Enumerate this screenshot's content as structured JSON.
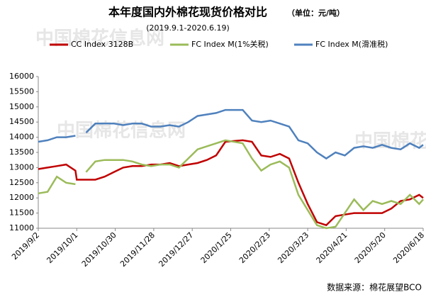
{
  "chart_data": {
    "type": "line",
    "title": "本年度国内外棉花现货价格对比",
    "unit": "（单位：元/吨）",
    "subtitle": "(2019.9.1-2020.6.19)",
    "source": "数据来源：棉花展望BCO",
    "watermark": "中国棉花信息网",
    "x": [
      "2019/9/2",
      "2019/9/9",
      "2019/9/16",
      "2019/9/23",
      "2019/9/30",
      "2019/10/1",
      "2019/10/8",
      "2019/10/15",
      "2019/10/22",
      "2019/10/29",
      "2019/11/5",
      "2019/11/12",
      "2019/11/19",
      "2019/11/26",
      "2019/12/3",
      "2019/12/10",
      "2019/12/17",
      "2019/12/24",
      "2019/12/31",
      "2020/1/7",
      "2020/1/14",
      "2020/1/21",
      "2020/2/3",
      "2020/2/10",
      "2020/2/17",
      "2020/2/24",
      "2020/3/2",
      "2020/3/9",
      "2020/3/16",
      "2020/3/23",
      "2020/3/30",
      "2020/4/6",
      "2020/4/13",
      "2020/4/20",
      "2020/4/27",
      "2020/5/4",
      "2020/5/11",
      "2020/5/18",
      "2020/5/25",
      "2020/6/1",
      "2020/6/8",
      "2020/6/15",
      "2020/6/18"
    ],
    "series": [
      {
        "name": "CC Index 3128B",
        "color": "#c00000",
        "values": [
          12950,
          13000,
          13050,
          13100,
          12900,
          12600,
          12600,
          12600,
          12700,
          12850,
          13000,
          13050,
          13050,
          13100,
          13100,
          13150,
          13050,
          13100,
          13150,
          13250,
          13400,
          13850,
          13900,
          13850,
          13400,
          13350,
          13450,
          13300,
          12500,
          11800,
          11200,
          11100,
          11400,
          11450,
          11500,
          11500,
          11500,
          11500,
          11650,
          11900,
          11950,
          12100,
          12000
        ]
      },
      {
        "name": "FC Index M(1%关税)",
        "color": "#9bbb59",
        "values": [
          12150,
          12200,
          12700,
          12500,
          12450,
          null,
          12850,
          13200,
          13250,
          13250,
          13250,
          13200,
          13100,
          13050,
          13100,
          13100,
          13000,
          13300,
          13600,
          13700,
          13800,
          13900,
          13800,
          13300,
          12900,
          13100,
          13200,
          13000,
          12100,
          11600,
          11100,
          11000,
          11050,
          11500,
          11950,
          11600,
          11900,
          11800,
          11900,
          11800,
          12100,
          11800,
          11950
        ]
      },
      {
        "name": "FC Index M(滑准税)",
        "color": "#4f81bd",
        "values": [
          13850,
          13900,
          14000,
          14000,
          14050,
          null,
          14150,
          14450,
          14450,
          14450,
          14400,
          14450,
          14450,
          14350,
          14350,
          14400,
          14350,
          14500,
          14700,
          14750,
          14800,
          14900,
          14900,
          14550,
          14500,
          14550,
          14450,
          14350,
          13900,
          13800,
          13500,
          13300,
          13500,
          13400,
          13650,
          13700,
          13650,
          13750,
          13650,
          13600,
          13800,
          13650,
          13750
        ]
      }
    ],
    "xlim": [
      "2019/9/2",
      "2020/6/18"
    ],
    "xticks": [
      "2019/9/2",
      "2019/10/1",
      "2019/10/30",
      "2019/11/28",
      "2019/12/27",
      "2020/1/25",
      "2020/2/23",
      "2020/3/23",
      "2020/4/21",
      "2020/5/20",
      "2020/6/18"
    ],
    "ylim": [
      11000,
      16000
    ],
    "yticks": [
      11000,
      11500,
      12000,
      12500,
      13000,
      13500,
      14000,
      14500,
      15000,
      15500,
      16000
    ],
    "grid": false
  }
}
